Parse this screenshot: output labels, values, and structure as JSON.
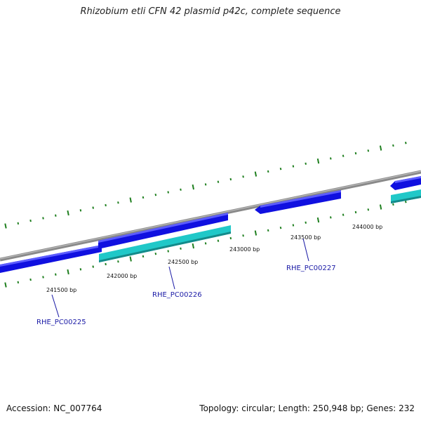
{
  "title": "Rhizobium etli CFN 42 plasmid p42c, complete sequence",
  "footer": {
    "accession": "Accession: NC_007764",
    "summary": "Topology: circular; Length: 250,948 bp; Genes: 232"
  },
  "colors": {
    "backbone": "#8a8a8a",
    "forward_gene": "#1010e0",
    "cds": "#20c8c8",
    "tick": "#1f7f1f",
    "label": "#1a1aa6"
  },
  "position_labels": [
    "241500 bp",
    "242000 bp",
    "242500 bp",
    "243000 bp",
    "243500 bp",
    "244000 bp"
  ],
  "gene_labels": [
    "RHE_PC00225",
    "RHE_PC00226",
    "RHE_PC00227"
  ]
}
